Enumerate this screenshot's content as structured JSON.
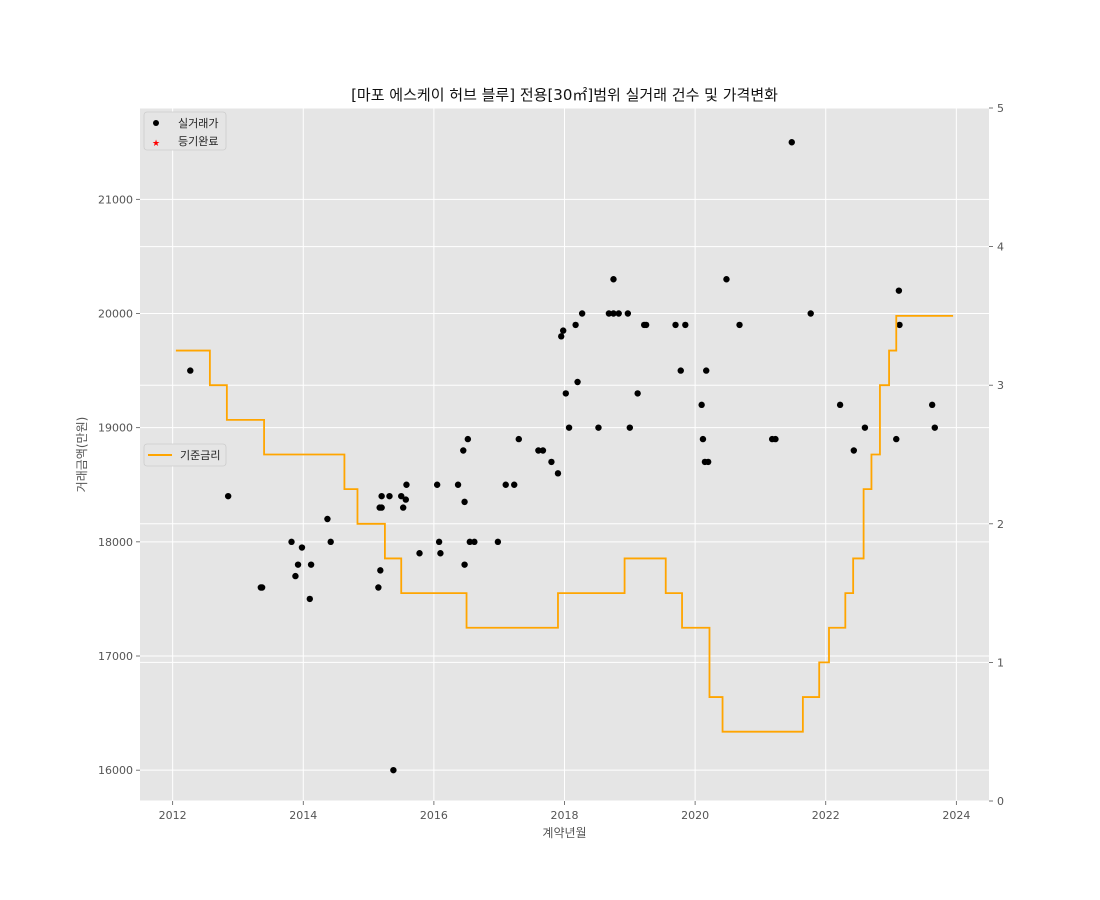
{
  "chart_data": {
    "type": "scatter",
    "title": "[마포 에스케이 허브 블루] 전용[30㎡]범위 실거래 건수 및 가격변화",
    "xlabel": "계약년월",
    "ylabel": "거래금액(만원)",
    "xlim": [
      2011.5,
      2024.5
    ],
    "ylim": [
      15730,
      21800
    ],
    "y2lim": [
      0,
      5
    ],
    "x_ticks": [
      "2012",
      "2014",
      "2016",
      "2018",
      "2020",
      "2022",
      "2024"
    ],
    "y_ticks": [
      "16000",
      "17000",
      "18000",
      "19000",
      "20000",
      "21000"
    ],
    "y2_ticks": [
      "0",
      "1",
      "2",
      "3",
      "4",
      "5"
    ],
    "grid": true,
    "legend_main": {
      "placement": "top-left",
      "entries": [
        {
          "label": "실거래가",
          "marker": "circle",
          "color": "#000000"
        },
        {
          "label": "등기완료",
          "marker": "star",
          "color": "#ff0000"
        }
      ]
    },
    "legend_rate": {
      "placement": "center-left",
      "entries": [
        {
          "label": "기준금리",
          "marker": "line",
          "color": "#ffa500"
        }
      ]
    },
    "series": [
      {
        "name": "실거래가",
        "axis": "left",
        "color": "#000000",
        "points": [
          [
            2012.27,
            19500
          ],
          [
            2012.85,
            18400
          ],
          [
            2013.35,
            17600
          ],
          [
            2013.37,
            17600
          ],
          [
            2013.82,
            18000
          ],
          [
            2013.88,
            17700
          ],
          [
            2013.92,
            17800
          ],
          [
            2013.98,
            17950
          ],
          [
            2014.1,
            17500
          ],
          [
            2014.12,
            17800
          ],
          [
            2014.37,
            18200
          ],
          [
            2014.42,
            18000
          ],
          [
            2015.15,
            17600
          ],
          [
            2015.17,
            18300
          ],
          [
            2015.2,
            18300
          ],
          [
            2015.18,
            17750
          ],
          [
            2015.2,
            18400
          ],
          [
            2015.32,
            18400
          ],
          [
            2015.38,
            16000
          ],
          [
            2015.5,
            18400
          ],
          [
            2015.53,
            18300
          ],
          [
            2015.57,
            18370
          ],
          [
            2015.58,
            18500
          ],
          [
            2015.78,
            17900
          ],
          [
            2016.05,
            18500
          ],
          [
            2016.08,
            18000
          ],
          [
            2016.1,
            17900
          ],
          [
            2016.37,
            18500
          ],
          [
            2016.45,
            18800
          ],
          [
            2016.47,
            17800
          ],
          [
            2016.47,
            18350
          ],
          [
            2016.52,
            18900
          ],
          [
            2016.55,
            18000
          ],
          [
            2016.62,
            18000
          ],
          [
            2016.98,
            18000
          ],
          [
            2017.1,
            18500
          ],
          [
            2017.23,
            18500
          ],
          [
            2017.3,
            18900
          ],
          [
            2017.6,
            18800
          ],
          [
            2017.67,
            18800
          ],
          [
            2017.8,
            18700
          ],
          [
            2017.9,
            18600
          ],
          [
            2017.95,
            19800
          ],
          [
            2017.98,
            19850
          ],
          [
            2018.02,
            19300
          ],
          [
            2018.07,
            19000
          ],
          [
            2018.17,
            19900
          ],
          [
            2018.2,
            19400
          ],
          [
            2018.27,
            20000
          ],
          [
            2018.52,
            19000
          ],
          [
            2018.68,
            20000
          ],
          [
            2018.75,
            20000
          ],
          [
            2018.75,
            20300
          ],
          [
            2018.83,
            20000
          ],
          [
            2018.97,
            20000
          ],
          [
            2019.0,
            19000
          ],
          [
            2019.12,
            19300
          ],
          [
            2019.22,
            19900
          ],
          [
            2019.25,
            19900
          ],
          [
            2019.7,
            19900
          ],
          [
            2019.78,
            19500
          ],
          [
            2019.85,
            19900
          ],
          [
            2020.1,
            19200
          ],
          [
            2020.12,
            18900
          ],
          [
            2020.15,
            18700
          ],
          [
            2020.17,
            19500
          ],
          [
            2020.2,
            18700
          ],
          [
            2020.48,
            20300
          ],
          [
            2020.68,
            19900
          ],
          [
            2021.18,
            18900
          ],
          [
            2021.23,
            18900
          ],
          [
            2021.48,
            21500
          ],
          [
            2021.77,
            20000
          ],
          [
            2022.22,
            19200
          ],
          [
            2022.43,
            18800
          ],
          [
            2022.6,
            19000
          ],
          [
            2023.08,
            18900
          ],
          [
            2023.12,
            20200
          ],
          [
            2023.13,
            19900
          ],
          [
            2023.63,
            19200
          ],
          [
            2023.67,
            19000
          ]
        ]
      },
      {
        "name": "기준금리",
        "axis": "right",
        "color": "#ffa500",
        "step_points": [
          [
            2012.05,
            3.25
          ],
          [
            2012.57,
            3.0
          ],
          [
            2012.83,
            2.75
          ],
          [
            2013.4,
            2.5
          ],
          [
            2014.63,
            2.25
          ],
          [
            2014.83,
            2.0
          ],
          [
            2015.25,
            1.75
          ],
          [
            2015.5,
            1.5
          ],
          [
            2016.5,
            1.25
          ],
          [
            2017.9,
            1.5
          ],
          [
            2018.92,
            1.75
          ],
          [
            2019.55,
            1.5
          ],
          [
            2019.8,
            1.25
          ],
          [
            2020.22,
            0.75
          ],
          [
            2020.42,
            0.5
          ],
          [
            2021.65,
            0.75
          ],
          [
            2021.9,
            1.0
          ],
          [
            2022.05,
            1.25
          ],
          [
            2022.3,
            1.5
          ],
          [
            2022.42,
            1.75
          ],
          [
            2022.58,
            2.25
          ],
          [
            2022.7,
            2.5
          ],
          [
            2022.83,
            3.0
          ],
          [
            2022.97,
            3.25
          ],
          [
            2023.08,
            3.5
          ],
          [
            2023.95,
            3.5
          ]
        ]
      }
    ]
  }
}
